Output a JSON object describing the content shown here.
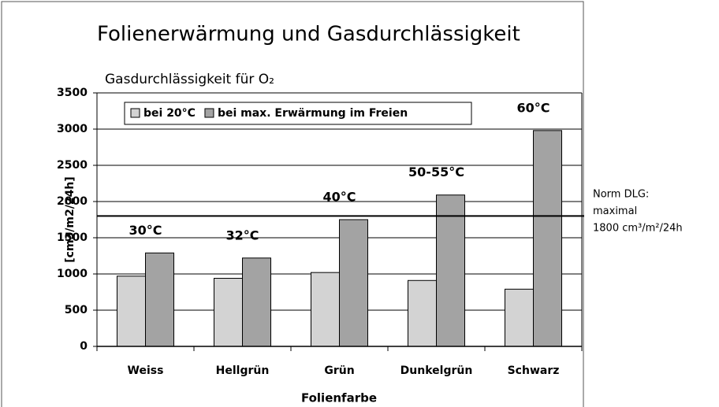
{
  "chart_data": {
    "type": "bar",
    "title": "Folienerwärmung und Gasdurchlässigkeit",
    "subtitle": "Gasdurchlässigkeit für O₂",
    "y_label": "[cm3/m2/24h]",
    "x_label": "Folienfarbe",
    "categories": [
      "Weiss",
      "Hellgrün",
      "Grün",
      "Dunkelgrün",
      "Schwarz"
    ],
    "series": [
      {
        "name": "bei 20°C",
        "color": "#d3d3d3",
        "values": [
          970,
          940,
          1020,
          910,
          790
        ]
      },
      {
        "name": "bei max. Erwärmung im Freien",
        "color": "#a3a3a3",
        "values": [
          1290,
          1220,
          1750,
          2090,
          2980
        ]
      }
    ],
    "bar_labels": [
      "30°C",
      "32°C",
      "40°C",
      "50-55°C",
      "60°C"
    ],
    "reference_line": {
      "value": 1800,
      "label": [
        "Norm DLG:",
        "maximal",
        "1800 cm³/m²/24h"
      ]
    },
    "ylim": [
      0,
      3500
    ],
    "yticks": [
      0,
      500,
      1000,
      1500,
      2000,
      2500,
      3000,
      3500
    ],
    "grid": true
  }
}
